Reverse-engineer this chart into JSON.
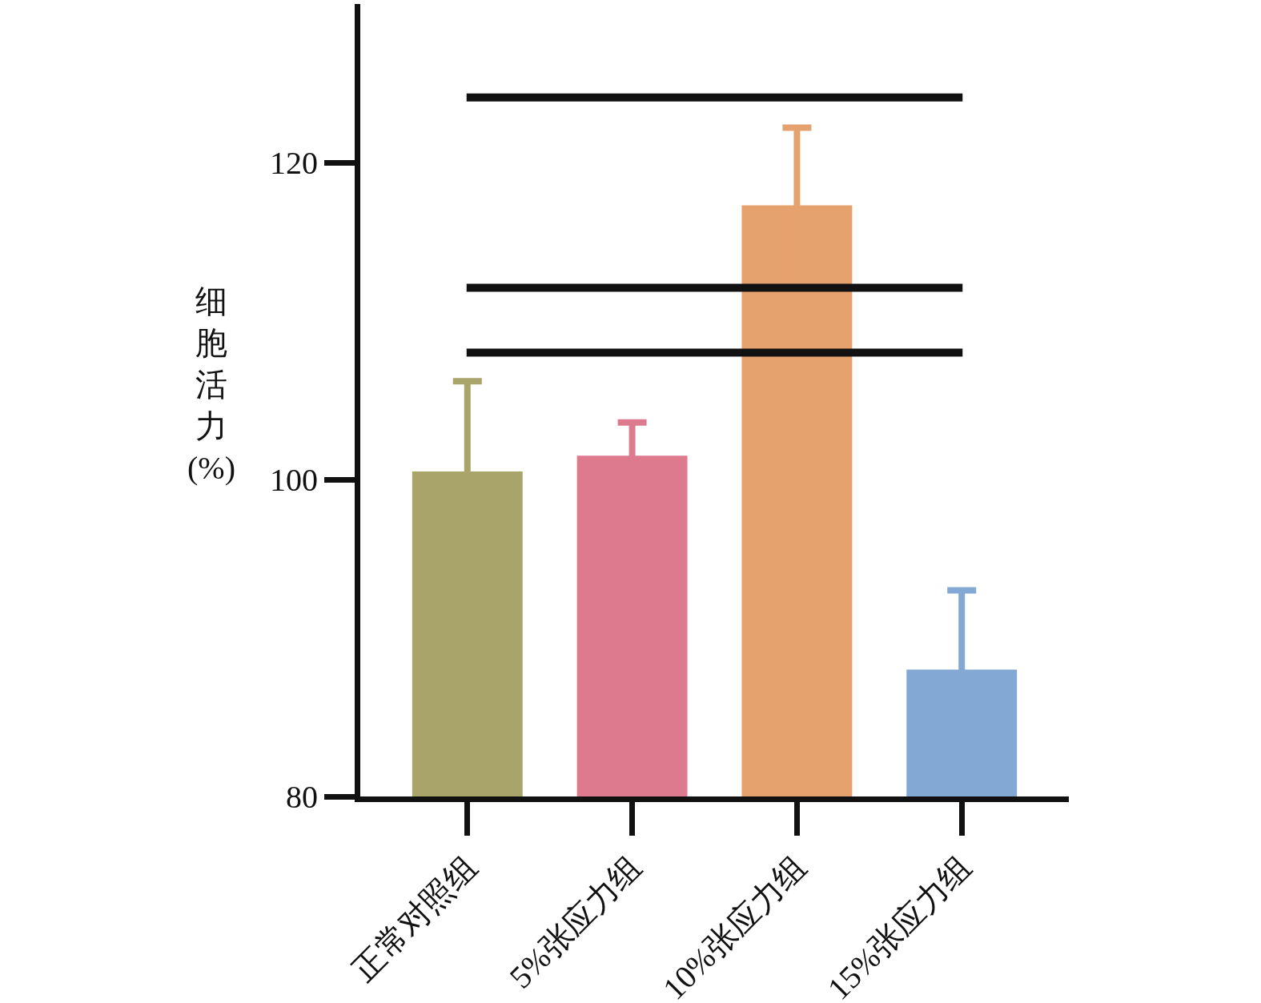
{
  "chart_data": {
    "type": "bar",
    "ylabel": "细胞活力(%)",
    "categories": [
      "正常对照组",
      "5%张应力组",
      "10%张应力组",
      "15%张应力组"
    ],
    "values": [
      100.5,
      101.5,
      117.3,
      88.0
    ],
    "errors": [
      5.7,
      2.1,
      4.9,
      5.0
    ],
    "colors": [
      "#a8a46a",
      "#dd7a8e",
      "#e6a26e",
      "#84a8d4"
    ],
    "ylim": [
      80,
      130
    ],
    "yticks": [
      80,
      100,
      120
    ],
    "ref_lines": [
      {
        "axis": "y",
        "value": 124.1,
        "label": null,
        "color": "#111111"
      },
      {
        "axis": "y",
        "value": 112.1,
        "label": null,
        "color": "#111111"
      },
      {
        "axis": "y",
        "value": 108.0,
        "label": null,
        "color": "#111111"
      }
    ]
  }
}
